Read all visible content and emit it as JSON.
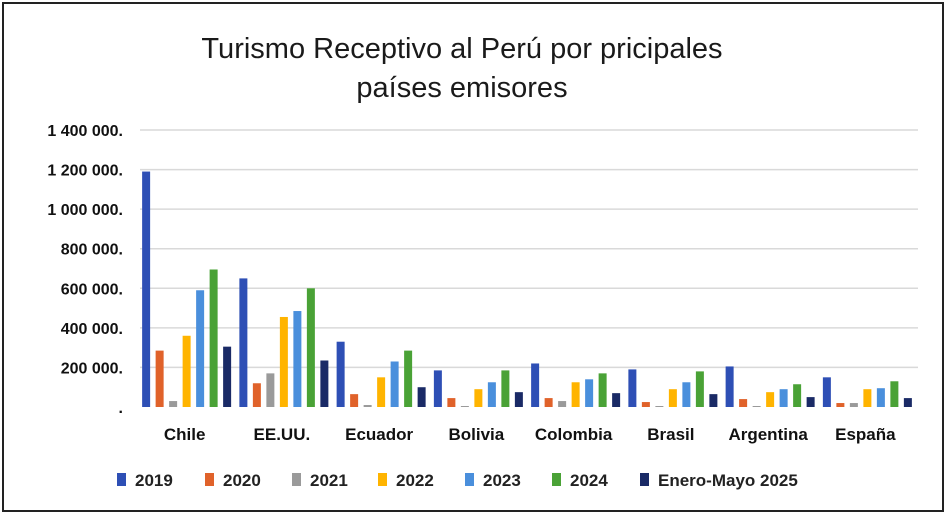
{
  "chart_data": {
    "type": "bar",
    "title_lines": [
      "Turismo Receptivo al Perú por pricipales",
      "países emisores"
    ],
    "categories": [
      "Chile",
      "EE.UU.",
      "Ecuador",
      "Bolivia",
      "Colombia",
      "Brasil",
      "Argentina",
      "España"
    ],
    "ylim": [
      0,
      1400000
    ],
    "yticks": [
      0,
      200000,
      400000,
      600000,
      800000,
      1000000,
      1200000,
      1400000
    ],
    "ytick_labels": [
      ".",
      "200 000.",
      "400 000.",
      "600 000.",
      "800 000.",
      "1 000 000.",
      "1 200 000.",
      "1 400 000."
    ],
    "grid": true,
    "legend_position": "bottom",
    "series": [
      {
        "name": "2019",
        "color": "#2e4fb5",
        "values": [
          1190000,
          650000,
          330000,
          185000,
          220000,
          190000,
          205000,
          150000
        ]
      },
      {
        "name": "2020",
        "color": "#e0622a",
        "values": [
          285000,
          120000,
          65000,
          45000,
          45000,
          25000,
          40000,
          20000
        ]
      },
      {
        "name": "2021",
        "color": "#9a9a9a",
        "values": [
          30000,
          170000,
          10000,
          5000,
          30000,
          5000,
          5000,
          20000
        ]
      },
      {
        "name": "2022",
        "color": "#ffb400",
        "values": [
          360000,
          455000,
          150000,
          90000,
          125000,
          90000,
          75000,
          90000
        ]
      },
      {
        "name": "2023",
        "color": "#4a8fdc",
        "values": [
          590000,
          485000,
          230000,
          125000,
          140000,
          125000,
          90000,
          95000
        ]
      },
      {
        "name": "2024",
        "color": "#4aa236",
        "values": [
          695000,
          600000,
          285000,
          185000,
          170000,
          180000,
          115000,
          130000
        ]
      },
      {
        "name": "Enero-Mayo 2025",
        "color": "#1a2a66",
        "values": [
          305000,
          235000,
          100000,
          75000,
          70000,
          65000,
          50000,
          45000
        ]
      }
    ]
  }
}
